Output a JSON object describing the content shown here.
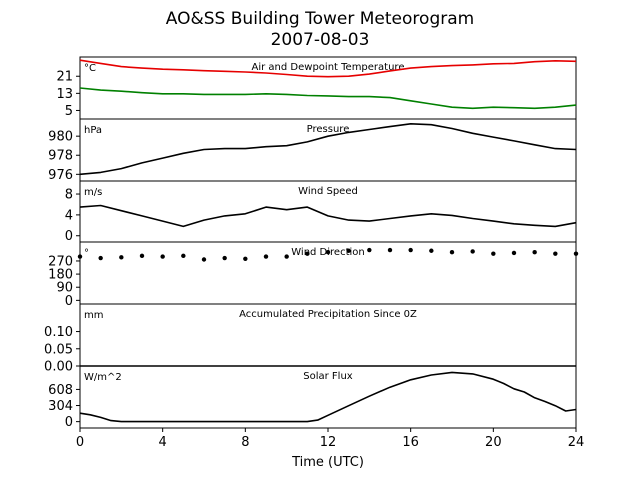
{
  "title_line1": "AO&SS Building Tower Meteorogram",
  "title_line2": "2007-08-03",
  "x_axis": {
    "label": "Time (UTC)",
    "ticks": [
      0,
      4,
      8,
      12,
      16,
      20,
      24
    ],
    "range": [
      0,
      24
    ]
  },
  "colors": {
    "air_temperature": "#e60000",
    "dewpoint": "#008000",
    "default": "#000000"
  },
  "chart_data": [
    {
      "type": "line",
      "panel": "temperature",
      "title": "Air and Dewpoint Temperature",
      "unit_label": "°C",
      "ylim": [
        1,
        30
      ],
      "yticks": [
        5,
        13,
        21
      ],
      "series": [
        {
          "color": "#e60000",
          "x": [
            0,
            1,
            2,
            3,
            4,
            5,
            6,
            7,
            8,
            9,
            10,
            11,
            12,
            13,
            14,
            15,
            16,
            17,
            18,
            19,
            20,
            21,
            22,
            23,
            24
          ],
          "y": [
            28.5,
            27,
            25.5,
            24.8,
            24.3,
            24.0,
            23.6,
            23.3,
            23.0,
            22.5,
            21.8,
            21.0,
            20.8,
            21.0,
            22.0,
            23.5,
            24.8,
            25.5,
            26.0,
            26.3,
            26.8,
            27.0,
            27.8,
            28.2,
            28.0
          ]
        },
        {
          "color": "#008000",
          "x": [
            0,
            1,
            2,
            3,
            4,
            5,
            6,
            7,
            8,
            9,
            10,
            11,
            12,
            13,
            14,
            15,
            16,
            17,
            18,
            19,
            20,
            21,
            22,
            23,
            24
          ],
          "y": [
            15.5,
            14.5,
            14.0,
            13.3,
            12.8,
            12.8,
            12.5,
            12.5,
            12.5,
            12.8,
            12.5,
            12.0,
            11.8,
            11.5,
            11.5,
            11.0,
            9.5,
            8.0,
            6.5,
            6.0,
            6.5,
            6.3,
            6.0,
            6.5,
            7.5
          ]
        }
      ]
    },
    {
      "type": "line",
      "panel": "pressure",
      "title": "Pressure",
      "unit_label": "hPa",
      "ylim": [
        975.3,
        981.8
      ],
      "yticks": [
        976,
        978,
        980
      ],
      "series": [
        {
          "color": "#000000",
          "x": [
            0,
            1,
            2,
            3,
            4,
            5,
            6,
            7,
            8,
            9,
            10,
            11,
            12,
            13,
            14,
            15,
            16,
            17,
            18,
            19,
            20,
            21,
            22,
            23,
            24
          ],
          "y": [
            976.0,
            976.2,
            976.6,
            977.2,
            977.7,
            978.2,
            978.6,
            978.7,
            978.7,
            978.9,
            979.0,
            979.4,
            980.0,
            980.4,
            980.7,
            981.0,
            981.3,
            981.2,
            980.8,
            980.3,
            979.9,
            979.5,
            979.1,
            978.7,
            978.6
          ]
        }
      ]
    },
    {
      "type": "line",
      "panel": "wind_speed",
      "title": "Wind Speed",
      "unit_label": "m/s",
      "ylim": [
        -1.2,
        10.5
      ],
      "yticks": [
        0,
        4,
        8
      ],
      "series": [
        {
          "color": "#000000",
          "x": [
            0,
            1,
            2,
            3,
            4,
            5,
            6,
            7,
            8,
            9,
            10,
            11,
            12,
            13,
            14,
            15,
            16,
            17,
            18,
            19,
            20,
            21,
            22,
            23,
            24
          ],
          "y": [
            5.5,
            5.8,
            4.8,
            3.8,
            2.8,
            1.8,
            3.0,
            3.8,
            4.2,
            5.5,
            5.0,
            5.5,
            3.8,
            3.0,
            2.8,
            3.3,
            3.8,
            4.2,
            3.9,
            3.3,
            2.8,
            2.3,
            2.0,
            1.8,
            2.5
          ]
        }
      ]
    },
    {
      "type": "scatter",
      "panel": "wind_direction",
      "title": "Wind Direction",
      "unit_label": "°",
      "ylim": [
        -25,
        400
      ],
      "yticks": [
        0,
        90,
        180,
        270
      ],
      "series": [
        {
          "color": "#000000",
          "x": [
            0,
            1,
            2,
            3,
            4,
            5,
            6,
            7,
            8,
            9,
            10,
            11,
            12,
            13,
            14,
            15,
            16,
            17,
            18,
            19,
            20,
            21,
            22,
            23,
            24
          ],
          "y": [
            300,
            290,
            295,
            305,
            300,
            305,
            280,
            290,
            285,
            300,
            300,
            320,
            330,
            340,
            345,
            345,
            345,
            340,
            330,
            335,
            320,
            325,
            330,
            320,
            320
          ]
        }
      ]
    },
    {
      "type": "line",
      "panel": "precipitation",
      "title": "Accumulated Precipitation Since 0Z",
      "unit_label": "mm",
      "ylim": [
        0,
        0.18
      ],
      "yticks": [
        0.0,
        0.05,
        0.1
      ],
      "ytick_labels": [
        "0.00",
        "0.05",
        "0.10"
      ],
      "series": [
        {
          "color": "#000000",
          "x": [
            0,
            24
          ],
          "y": [
            0,
            0
          ]
        }
      ]
    },
    {
      "type": "line",
      "panel": "solar_flux",
      "title": "Solar Flux",
      "unit_label": "W/m^2",
      "ylim": [
        -120,
        1050
      ],
      "yticks": [
        0,
        304,
        608
      ],
      "series": [
        {
          "color": "#000000",
          "x": [
            0,
            0.5,
            1,
            1.5,
            2,
            4,
            6,
            8,
            10,
            11,
            11.5,
            12,
            13,
            14,
            15,
            16,
            17,
            18,
            19,
            20,
            20.5,
            21,
            21.5,
            22,
            22.5,
            23,
            23.5,
            24
          ],
          "y": [
            160,
            130,
            80,
            20,
            0,
            0,
            0,
            0,
            0,
            0,
            30,
            120,
            300,
            480,
            650,
            790,
            880,
            930,
            900,
            800,
            720,
            620,
            560,
            450,
            380,
            300,
            200,
            230
          ]
        }
      ]
    }
  ]
}
